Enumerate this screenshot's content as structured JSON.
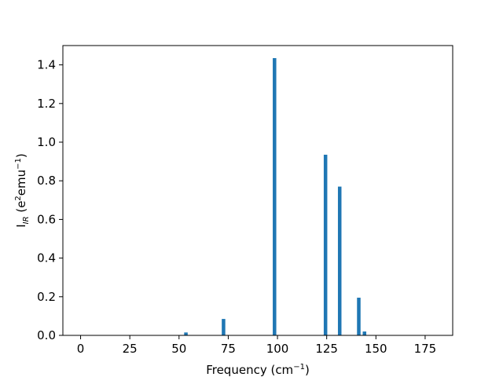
{
  "chart_data": {
    "type": "bar",
    "title": "",
    "xlabel": {
      "main": "Frequency (cm",
      "sup": "−1",
      "tail": ")"
    },
    "ylabel": {
      "main": "I",
      "sub": "IR",
      "mid": " (e",
      "sup1": "2",
      "mid2": "emu",
      "sup2": "−1",
      "tail": ")"
    },
    "xlim": [
      -9,
      189
    ],
    "ylim": [
      0,
      1.5
    ],
    "xticks": [
      0,
      25,
      50,
      75,
      100,
      125,
      150,
      175
    ],
    "yticks": [
      0.0,
      0.2,
      0.4,
      0.6,
      0.8,
      1.0,
      1.2,
      1.4
    ],
    "ytick_labels": [
      "0.0",
      "0.2",
      "0.4",
      "0.6",
      "0.8",
      "1.0",
      "1.2",
      "1.4"
    ],
    "bar_width": 1.8,
    "grid": false,
    "color": "#1f77b4",
    "x": [
      53.5,
      72.6,
      98.5,
      124.4,
      131.6,
      141.3,
      144.2
    ],
    "values": [
      0.015,
      0.085,
      1.435,
      0.935,
      0.77,
      0.195,
      0.02
    ]
  }
}
